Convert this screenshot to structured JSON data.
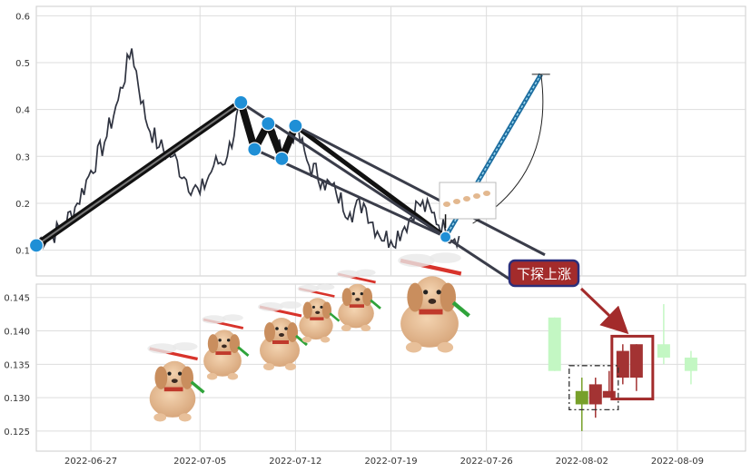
{
  "chart_data": [
    {
      "type": "line",
      "panel": "top",
      "ylim": [
        0.045,
        0.62
      ],
      "y_ticks": [
        0.1,
        0.2,
        0.3,
        0.4,
        0.5,
        0.6
      ],
      "y_tick_labels": [
        "0.1",
        "0.2",
        "0.3",
        "0.4",
        "0.5",
        "0.6"
      ],
      "xlim": [
        "2022-06-23",
        "2022-08-14"
      ],
      "grid": true,
      "series": [
        {
          "x": [
            "2022-06-23",
            "2022-06-24",
            "2022-06-25",
            "2022-06-26",
            "2022-06-27",
            "2022-06-28",
            "2022-06-29",
            "2022-06-30",
            "2022-07-01",
            "2022-07-02",
            "2022-07-03",
            "2022-07-04",
            "2022-07-05",
            "2022-07-06",
            "2022-07-07",
            "2022-07-08",
            "2022-07-09",
            "2022-07-10",
            "2022-07-11",
            "2022-07-12",
            "2022-07-13",
            "2022-07-14",
            "2022-07-15",
            "2022-07-16",
            "2022-07-17",
            "2022-07-18",
            "2022-07-19",
            "2022-07-20",
            "2022-07-21",
            "2022-07-22",
            "2022-07-23",
            "2022-07-24"
          ],
          "y": [
            0.12,
            0.13,
            0.15,
            0.2,
            0.27,
            0.33,
            0.42,
            0.53,
            0.38,
            0.32,
            0.3,
            0.25,
            0.22,
            0.28,
            0.3,
            0.41,
            0.32,
            0.38,
            0.3,
            0.36,
            0.28,
            0.25,
            0.22,
            0.18,
            0.2,
            0.14,
            0.12,
            0.15,
            0.2,
            0.18,
            0.14,
            0.13
          ]
        }
      ],
      "pattern": {
        "points": [
          {
            "x": "2022-06-23",
            "y": 0.11
          },
          {
            "x": "2022-07-08",
            "y": 0.415
          },
          {
            "x": "2022-07-09",
            "y": 0.315
          },
          {
            "x": "2022-07-10",
            "y": 0.37
          },
          {
            "x": "2022-07-11",
            "y": 0.295
          },
          {
            "x": "2022-07-12",
            "y": 0.365
          },
          {
            "x": "2022-07-23",
            "y": 0.128
          }
        ],
        "projection_end": {
          "x": "2022-07-30",
          "y": 0.475
        }
      }
    },
    {
      "type": "candlestick",
      "panel": "bottom",
      "ylim": [
        0.122,
        0.147
      ],
      "y_ticks": [
        0.125,
        0.13,
        0.135,
        0.14,
        0.145
      ],
      "y_tick_labels": [
        "0.125",
        "0.130",
        "0.135",
        "0.140",
        "0.145"
      ],
      "x_ticks": [
        "2022-06-27",
        "2022-07-05",
        "2022-07-12",
        "2022-07-19",
        "2022-07-26",
        "2022-08-02",
        "2022-08-09"
      ],
      "x_tick_labels": [
        "2022-06-27",
        "2022-07-05",
        "2022-07-12",
        "2022-07-19",
        "2022-07-26",
        "2022-08-02",
        "2022-08-09"
      ],
      "grid": true,
      "candles": [
        {
          "date": "2022-07-31",
          "open": 0.142,
          "high": 0.142,
          "low": 0.134,
          "close": 0.134,
          "color": "#c3f7c3"
        },
        {
          "date": "2022-08-02",
          "open": 0.129,
          "high": 0.133,
          "low": 0.125,
          "close": 0.131,
          "color": "#77a02a"
        },
        {
          "date": "2022-08-03",
          "open": 0.129,
          "high": 0.133,
          "low": 0.127,
          "close": 0.132,
          "color": "#a33333"
        },
        {
          "date": "2022-08-04",
          "open": 0.13,
          "high": 0.134,
          "low": 0.13,
          "close": 0.131,
          "color": "#a33333"
        },
        {
          "date": "2022-08-05",
          "open": 0.133,
          "high": 0.138,
          "low": 0.132,
          "close": 0.137,
          "color": "#a33333"
        },
        {
          "date": "2022-08-06",
          "open": 0.133,
          "high": 0.138,
          "low": 0.131,
          "close": 0.138,
          "color": "#a33333"
        },
        {
          "date": "2022-08-08",
          "open": 0.138,
          "high": 0.144,
          "low": 0.135,
          "close": 0.136,
          "color": "#c3f7c3"
        },
        {
          "date": "2022-08-10",
          "open": 0.136,
          "high": 0.137,
          "low": 0.132,
          "close": 0.134,
          "color": "#c3f7c3"
        }
      ],
      "annotation": {
        "text": "下探上涨",
        "target": "2022-08-05"
      }
    }
  ]
}
